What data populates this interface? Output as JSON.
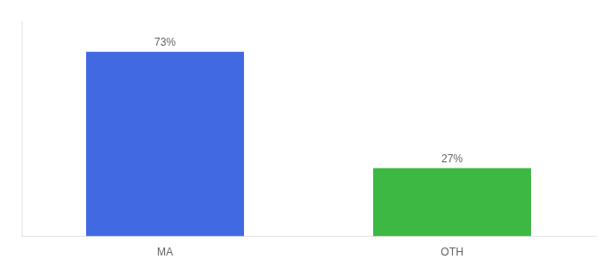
{
  "chart_data": {
    "type": "bar",
    "categories": [
      "MA",
      "OTH"
    ],
    "values": [
      73,
      27
    ],
    "colors": [
      "#4169e1",
      "#3cb843"
    ],
    "value_labels": [
      "73%",
      "27%"
    ],
    "data_labels": true,
    "ylim": [
      0,
      85
    ],
    "grid": false,
    "tick_labels": "x"
  }
}
